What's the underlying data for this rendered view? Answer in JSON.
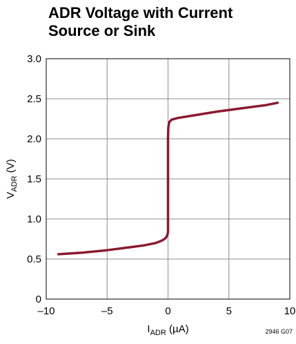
{
  "chart_data": {
    "type": "line",
    "title": "ADR Voltage with Current\nSource or Sink",
    "xlabel": {
      "main": "I",
      "sub": "ADR",
      "unit": " (µA)"
    },
    "ylabel": {
      "main": "V",
      "sub": "ADR",
      "unit": " (V)"
    },
    "xlim": [
      -10,
      10
    ],
    "ylim": [
      0,
      3.0
    ],
    "x_ticks": [
      {
        "value": -10,
        "label": "–10"
      },
      {
        "value": -5,
        "label": "–5"
      },
      {
        "value": 0,
        "label": "0"
      },
      {
        "value": 5,
        "label": "5"
      },
      {
        "value": 10,
        "label": "10"
      }
    ],
    "y_ticks": [
      {
        "value": 0,
        "label": "0"
      },
      {
        "value": 0.5,
        "label": "0.5"
      },
      {
        "value": 1.0,
        "label": "1.0"
      },
      {
        "value": 1.5,
        "label": "1.5"
      },
      {
        "value": 2.0,
        "label": "2.0"
      },
      {
        "value": 2.5,
        "label": "2.5"
      },
      {
        "value": 3.0,
        "label": "3.0"
      }
    ],
    "grid": true,
    "series": [
      {
        "color": "#8b1a2e",
        "points": [
          [
            -9.0,
            0.56
          ],
          [
            -7.0,
            0.58
          ],
          [
            -5.0,
            0.61
          ],
          [
            -3.0,
            0.65
          ],
          [
            -2.0,
            0.67
          ],
          [
            -1.0,
            0.7
          ],
          [
            -0.5,
            0.73
          ],
          [
            -0.2,
            0.76
          ],
          [
            -0.05,
            0.8
          ],
          [
            0.0,
            0.84
          ],
          [
            0.0,
            1.0
          ],
          [
            0.0,
            1.5
          ],
          [
            0.0,
            2.0
          ],
          [
            0.02,
            2.14
          ],
          [
            0.1,
            2.21
          ],
          [
            0.3,
            2.24
          ],
          [
            0.8,
            2.26
          ],
          [
            2.0,
            2.29
          ],
          [
            4.0,
            2.34
          ],
          [
            6.0,
            2.38
          ],
          [
            8.0,
            2.42
          ],
          [
            9.0,
            2.45
          ]
        ]
      }
    ],
    "figure_code": "2946 G07"
  }
}
